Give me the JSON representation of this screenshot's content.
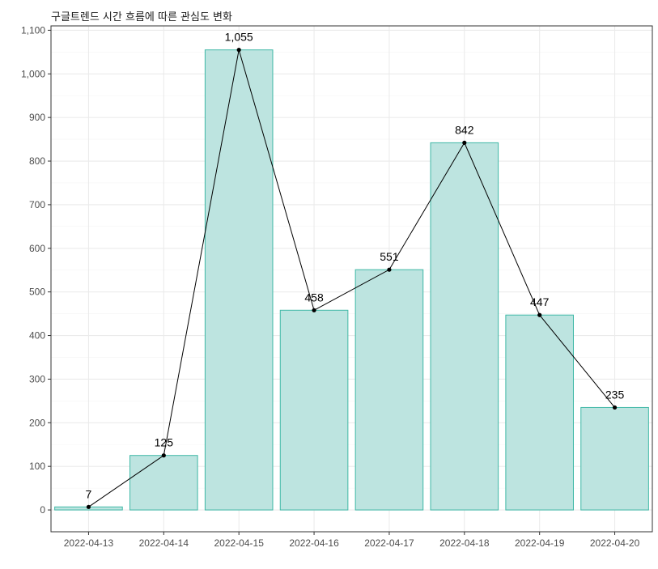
{
  "chart_data": {
    "type": "bar",
    "title": "구글트렌드 시간 흐름에 따른 관심도 변화",
    "xlabel": "",
    "ylabel": "",
    "categories": [
      "2022-04-13",
      "2022-04-14",
      "2022-04-15",
      "2022-04-16",
      "2022-04-17",
      "2022-04-18",
      "2022-04-19",
      "2022-04-20"
    ],
    "values": [
      7,
      125,
      1055,
      458,
      551,
      842,
      447,
      235
    ],
    "data_labels": [
      "7",
      "125",
      "1,055",
      "458",
      "551",
      "842",
      "447",
      "235"
    ],
    "overlay": {
      "type": "line",
      "marker": "point",
      "color": "#000000"
    },
    "ylim": [
      -50,
      1110
    ],
    "y_ticks": [
      0,
      100,
      200,
      300,
      400,
      500,
      600,
      700,
      800,
      900,
      1000,
      1100
    ],
    "y_tick_labels": [
      "0",
      "100",
      "200",
      "300",
      "400",
      "500",
      "600",
      "700",
      "800",
      "900",
      "1,000",
      "1,100"
    ],
    "grid": true,
    "legend": "none",
    "colors": {
      "bar_fill": "#bde4e0",
      "bar_stroke": "#3fb8a6",
      "line": "#000000",
      "panel_border": "#333333",
      "grid_major": "#ebebeb",
      "grid_minor": "#f4f4f4"
    }
  }
}
